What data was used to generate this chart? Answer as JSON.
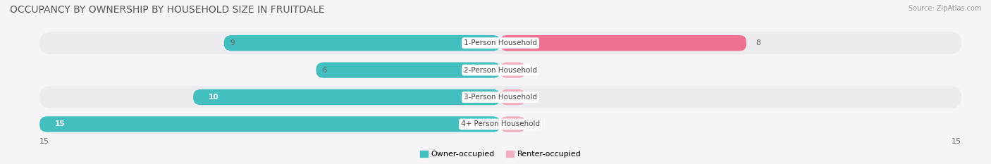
{
  "title": "OCCUPANCY BY OWNERSHIP BY HOUSEHOLD SIZE IN FRUITDALE",
  "source": "Source: ZipAtlas.com",
  "categories": [
    "1-Person Household",
    "2-Person Household",
    "3-Person Household",
    "4+ Person Household"
  ],
  "owner_values": [
    9,
    6,
    10,
    15
  ],
  "renter_values": [
    8,
    0,
    0,
    0
  ],
  "owner_color": "#44bfc0",
  "renter_color": "#f07090",
  "renter_color_light": "#f0b0c0",
  "row_bg_colors": [
    "#ebebf0",
    "#f5f5f8"
  ],
  "fig_bg_color": "#f5f5f8",
  "xlim_max": 15,
  "legend_owner": "Owner-occupied",
  "legend_renter": "Renter-occupied",
  "title_fontsize": 10,
  "label_fontsize": 7.5,
  "tick_fontsize": 8,
  "cat_fontsize": 7.5,
  "label_bg_color": "#ffffff"
}
